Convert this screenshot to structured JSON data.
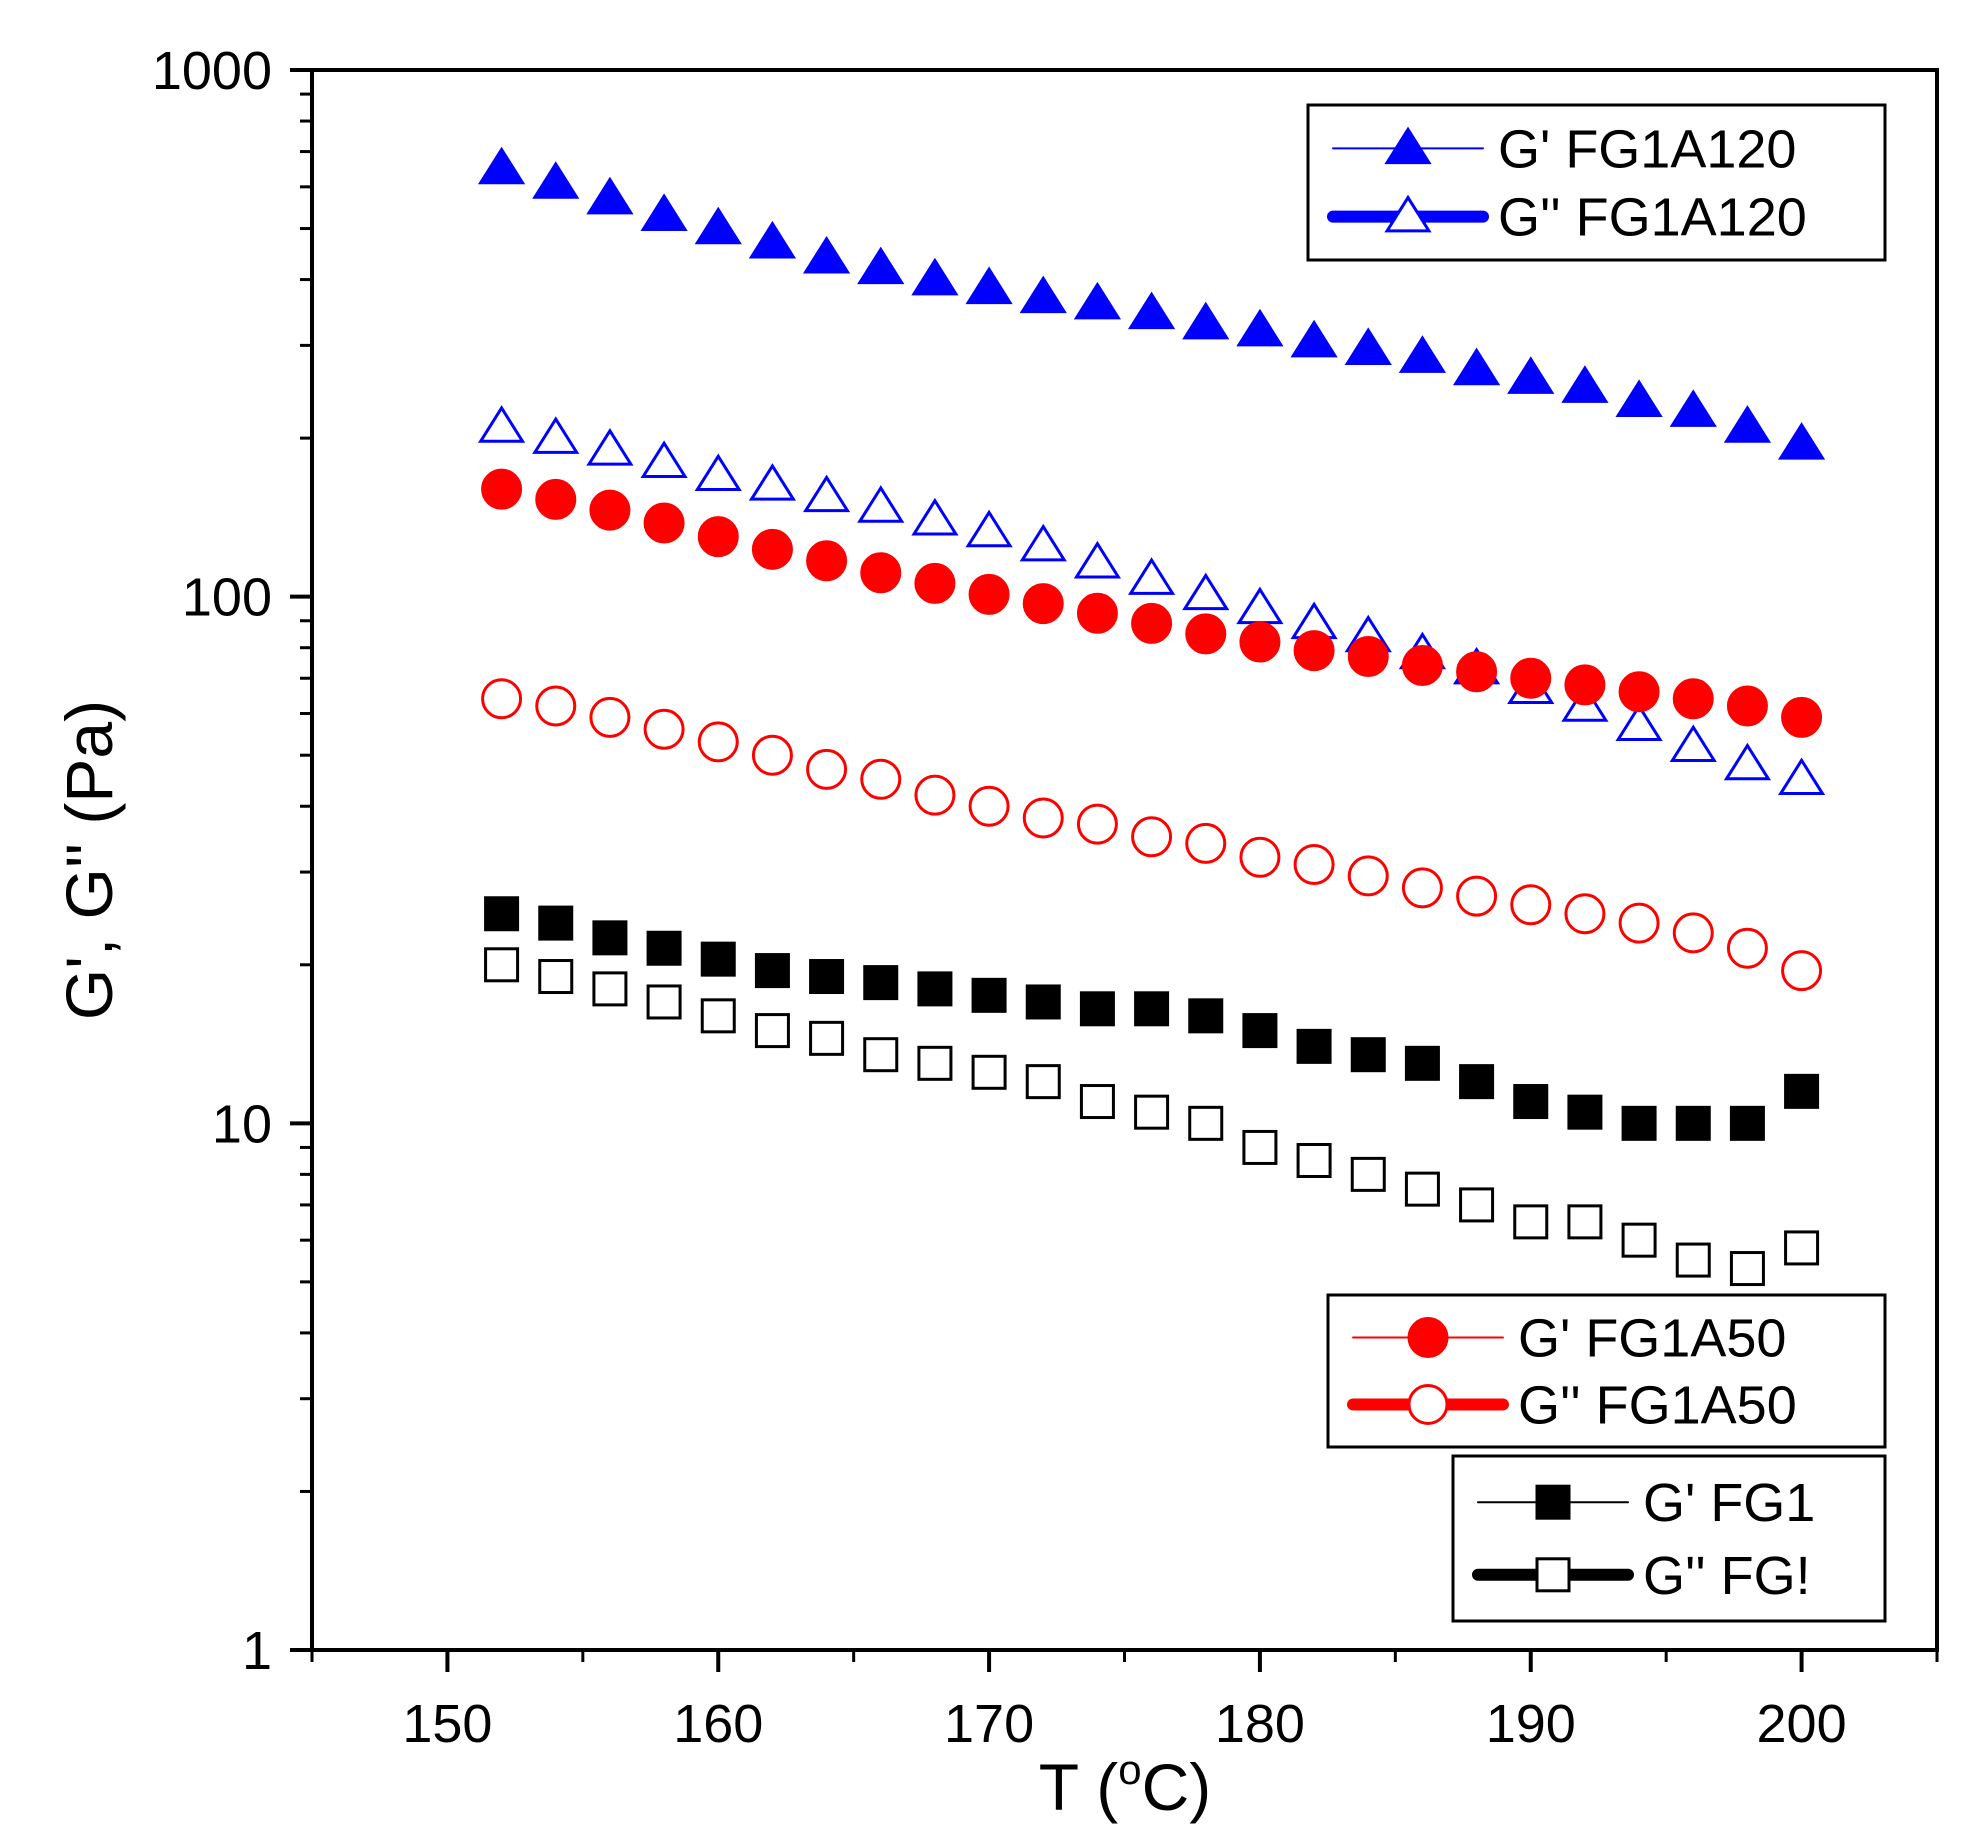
{
  "chart_data": {
    "type": "scatter",
    "title": "",
    "xlabel": "T (",
    "xlabel_degree": "o",
    "xlabel_unit": "C)",
    "ylabel": "G', G'' (Pa)",
    "xlim": [
      145,
      205
    ],
    "ylim": [
      1,
      1000
    ],
    "yscale": "log",
    "grid": false,
    "x_ticks": [
      150,
      160,
      170,
      180,
      190,
      200
    ],
    "x_tick_labels": [
      "150",
      "160",
      "170",
      "180",
      "190",
      "200"
    ],
    "y_ticks": [
      1,
      10,
      100,
      1000
    ],
    "y_tick_labels": [
      "1",
      "10",
      "100",
      "1000"
    ],
    "x": [
      152,
      154,
      156,
      158,
      160,
      162,
      164,
      166,
      168,
      170,
      172,
      174,
      176,
      178,
      180,
      182,
      184,
      186,
      188,
      190,
      192,
      194,
      196,
      198,
      200
    ],
    "series": [
      {
        "name": "G' FG1A120",
        "color": "#0000ff",
        "marker": "triangle",
        "filled": true,
        "legend_group": 0,
        "values": [
          650,
          610,
          570,
          530,
          500,
          470,
          440,
          420,
          400,
          385,
          370,
          360,
          345,
          330,
          320,
          305,
          295,
          285,
          270,
          260,
          250,
          235,
          225,
          210,
          195
        ]
      },
      {
        "name": "G'' FG1A120",
        "color": "#0000ff",
        "marker": "triangle",
        "filled": false,
        "legend_group": 0,
        "values": [
          210,
          200,
          190,
          180,
          170,
          163,
          155,
          148,
          140,
          133,
          125,
          116,
          108,
          101,
          95,
          89,
          84,
          78,
          73,
          67,
          62,
          57,
          52,
          48,
          45
        ]
      },
      {
        "name": "G' FG1A50",
        "color": "#ff0000",
        "marker": "circle",
        "filled": true,
        "legend_group": 1,
        "values": [
          160,
          153,
          146,
          138,
          130,
          123,
          117,
          111,
          106,
          101,
          97,
          93,
          89,
          85,
          82,
          79,
          77,
          74,
          72,
          70,
          68,
          66,
          64,
          62,
          59
        ]
      },
      {
        "name": "G'' FG1A50",
        "color": "#ff0000",
        "marker": "circle",
        "filled": false,
        "legend_group": 1,
        "values": [
          64,
          62,
          59,
          56,
          53,
          50,
          47,
          45,
          42,
          40,
          38,
          37,
          35,
          34,
          32,
          31,
          29.5,
          28,
          27,
          26,
          25,
          24,
          23,
          21.5,
          19.5
        ]
      },
      {
        "name": "G' FG1",
        "color": "#000000",
        "marker": "square",
        "filled": true,
        "legend_group": 2,
        "values": [
          25,
          24,
          22.5,
          21.5,
          20.5,
          19.5,
          19,
          18.5,
          18,
          17.5,
          17,
          16.5,
          16.5,
          16,
          15,
          14,
          13.5,
          13,
          12,
          11,
          10.5,
          10,
          10,
          10,
          11.5
        ]
      },
      {
        "name": "G'' FG!",
        "color": "#000000",
        "marker": "square",
        "filled": false,
        "legend_group": 2,
        "values": [
          20,
          19,
          18,
          17,
          16,
          15,
          14.5,
          13.5,
          13,
          12.5,
          12,
          11,
          10.5,
          10,
          9,
          8.5,
          8,
          7.5,
          7,
          6.5,
          6.5,
          6,
          5.5,
          5.3,
          5.8
        ]
      }
    ],
    "legends": [
      {
        "position": "top-right",
        "entries": [
          "G' FG1A120",
          "G'' FG1A120"
        ]
      },
      {
        "position": "lower-right",
        "entries": [
          "G' FG1A50",
          "G'' FG1A50"
        ]
      },
      {
        "position": "bottom-right",
        "entries": [
          "G' FG1",
          "G'' FG!"
        ]
      }
    ]
  }
}
